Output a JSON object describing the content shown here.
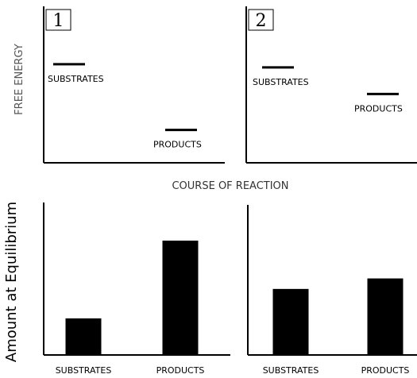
{
  "annotations": {
    "free_energy": "FREE ENERGY",
    "course": "COURSE OF REACTION",
    "amount": "Amount at Equilibrium"
  },
  "chart_data": [
    {
      "type": "level",
      "label": "1",
      "categories": [
        "SUBSTRATES",
        "PRODUCTS"
      ],
      "values": [
        63,
        21
      ],
      "ylim": [
        0,
        100
      ]
    },
    {
      "type": "level",
      "label": "2",
      "categories": [
        "SUBSTRATES",
        "PRODUCTS"
      ],
      "values": [
        61,
        44
      ],
      "ylim": [
        0,
        100
      ]
    },
    {
      "type": "bar",
      "categories": [
        "SUBSTRATES",
        "PRODUCTS"
      ],
      "values": [
        24,
        75
      ],
      "ylim": [
        0,
        100
      ],
      "color": "#000000"
    },
    {
      "type": "bar",
      "categories": [
        "SUBSTRATES",
        "PRODUCTS"
      ],
      "values": [
        44,
        51
      ],
      "ylim": [
        0,
        100
      ],
      "color": "#000000"
    }
  ]
}
